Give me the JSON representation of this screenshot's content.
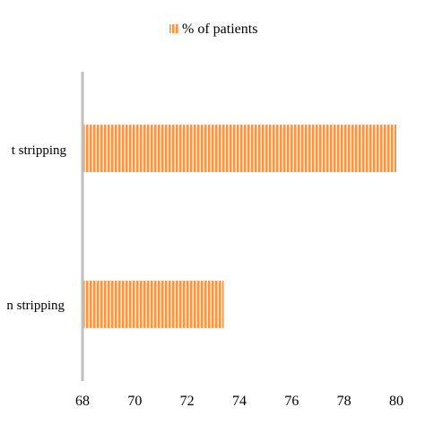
{
  "chart_data": {
    "type": "bar",
    "orientation": "horizontal",
    "categories": [
      "Without stripping",
      "With stripping"
    ],
    "category_labels_visible": [
      "t stripping",
      "n stripping"
    ],
    "series": [
      {
        "name": "% of patients",
        "values": [
          80,
          73.4
        ]
      }
    ],
    "x_ticks": [
      68,
      70,
      72,
      74,
      76,
      78,
      80
    ],
    "xlim": [
      68,
      80
    ],
    "title": "",
    "xlabel": "",
    "ylabel": "",
    "legend_position": "top",
    "grid": false,
    "colors": {
      "bar_fill": "#f79646",
      "bar_stripe": "#ffffff",
      "axis": "#bfbfbf"
    }
  }
}
